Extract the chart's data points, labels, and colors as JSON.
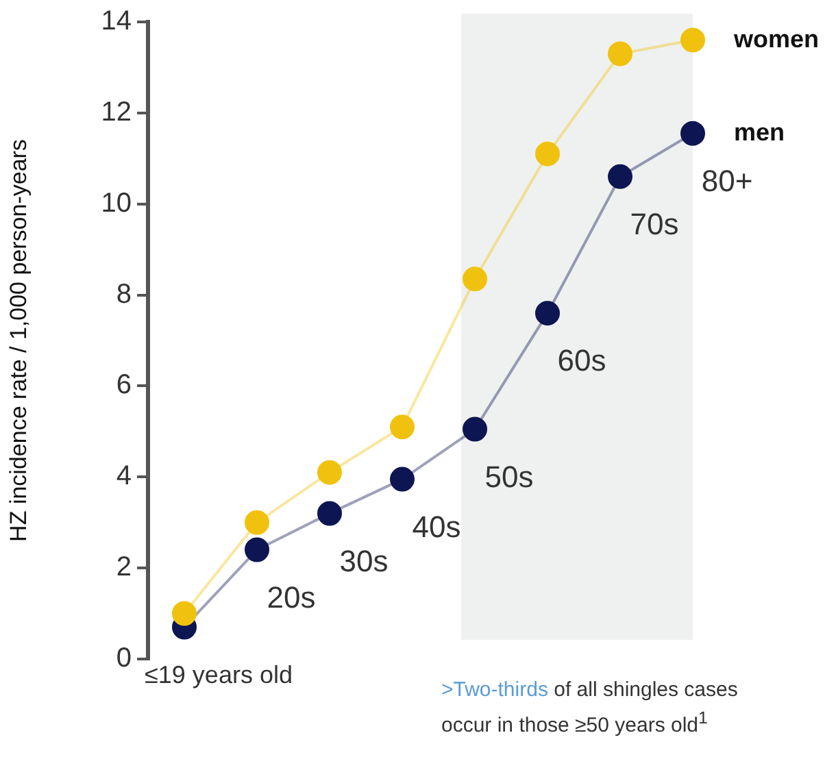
{
  "chart_data": {
    "type": "line",
    "ylabel": "HZ incidence rate / 1,000 person-years",
    "categories": [
      "≤19 years old",
      "20s",
      "30s",
      "40s",
      "50s",
      "60s",
      "70s",
      "80+"
    ],
    "series": [
      {
        "name": "women",
        "color": "#f0c20f",
        "values": [
          1.0,
          3.0,
          4.1,
          5.1,
          8.35,
          11.1,
          13.3,
          13.6
        ]
      },
      {
        "name": "men",
        "color": "#0d1552",
        "values": [
          0.7,
          2.4,
          3.2,
          3.95,
          5.05,
          7.6,
          10.6,
          11.55
        ]
      }
    ],
    "ylim": [
      0,
      14
    ],
    "yticks": [
      0,
      2,
      4,
      6,
      8,
      10,
      12,
      14
    ],
    "grid": false,
    "marker": "circle",
    "line_style": "solid",
    "bands": [
      {
        "axis": "x",
        "from": "50s",
        "to": "80+",
        "color": "#eff1f0"
      }
    ],
    "annotations": [
      ">Two-thirds of all shingles cases occur in those ≥50 years old$^{1}$"
    ]
  }
}
